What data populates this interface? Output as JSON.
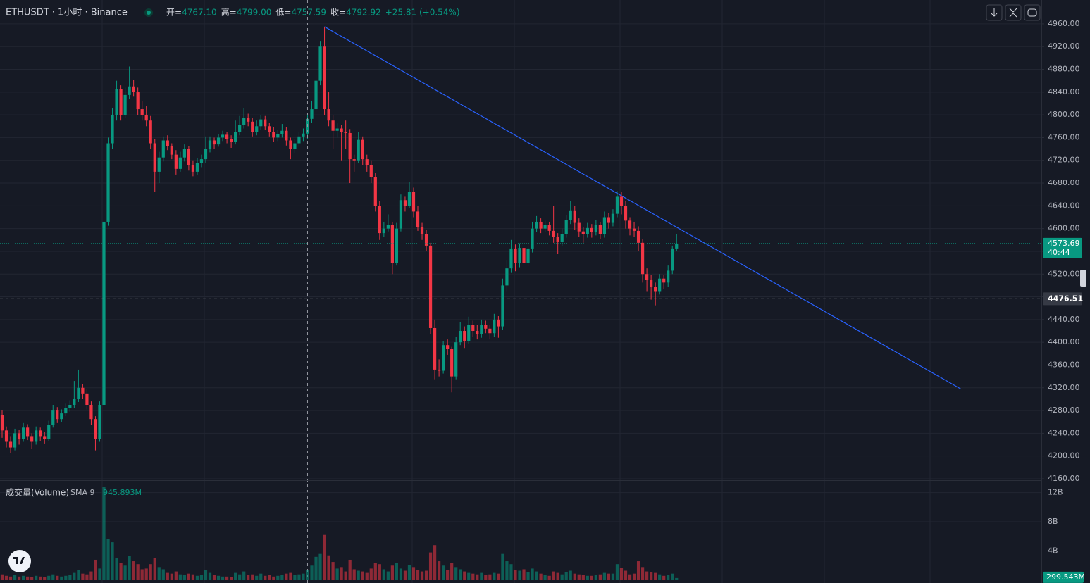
{
  "header": {
    "symbol": "ETHUSDT · 1小时 · Binance",
    "fields": [
      {
        "key": "开=",
        "value": "4767.10"
      },
      {
        "key": "高=",
        "value": "4799.00"
      },
      {
        "key": "低=",
        "value": "4757.59"
      },
      {
        "key": "收=",
        "value": "4792.92"
      }
    ],
    "change": "+25.81 (+0.54%)"
  },
  "chart_data": [
    {
      "type": "candlestick",
      "xlim": [
        -0.5,
        245
      ],
      "ylim": [
        4157.5,
        5002
      ],
      "yticks": [
        {
          "value": 4160,
          "label": "4160.00"
        },
        {
          "value": 4200,
          "label": "4200.00"
        },
        {
          "value": 4240,
          "label": "4240.00"
        },
        {
          "value": 4280,
          "label": "4280.00"
        },
        {
          "value": 4320,
          "label": "4320.00"
        },
        {
          "value": 4360,
          "label": "4360.00"
        },
        {
          "value": 4400,
          "label": "4400.00"
        },
        {
          "value": 4440,
          "label": "4440.00"
        },
        {
          "value": 4480,
          "label": "4480.00"
        },
        {
          "value": 4520,
          "label": "4520.00"
        },
        {
          "value": 4560,
          "label": "4560.00"
        },
        {
          "value": 4600,
          "label": "4600.00"
        },
        {
          "value": 4640,
          "label": "4640.00"
        },
        {
          "value": 4680,
          "label": "4680.00"
        },
        {
          "value": 4720,
          "label": "4720.00"
        },
        {
          "value": 4760,
          "label": "4760.00"
        },
        {
          "value": 4800,
          "label": "4800.00"
        },
        {
          "value": 4840,
          "label": "4840.00"
        },
        {
          "value": 4880,
          "label": "4880.00"
        },
        {
          "value": 4920,
          "label": "4920.00"
        },
        {
          "value": 4960,
          "label": "4960.00"
        }
      ],
      "grid": true,
      "colors": {
        "up": "#089981",
        "down": "#f23645"
      },
      "last_price": {
        "value": 4573.69,
        "countdown": "40:44"
      },
      "crosshair": {
        "x": 72,
        "y": 4476.51
      },
      "trendline": {
        "x": [
          76,
          226
        ],
        "y": [
          4955,
          4318
        ],
        "color": "#2962ff"
      },
      "ohlc": [
        [
          4272,
          4280,
          4232,
          4245
        ],
        [
          4245,
          4252,
          4215,
          4225
        ],
        [
          4225,
          4235,
          4205,
          4215
        ],
        [
          4215,
          4248,
          4210,
          4240
        ],
        [
          4240,
          4246,
          4220,
          4230
        ],
        [
          4230,
          4258,
          4225,
          4250
        ],
        [
          4250,
          4256,
          4228,
          4235
        ],
        [
          4235,
          4240,
          4212,
          4225
        ],
        [
          4225,
          4252,
          4220,
          4245
        ],
        [
          4245,
          4250,
          4226,
          4235
        ],
        [
          4235,
          4242,
          4222,
          4230
        ],
        [
          4230,
          4262,
          4226,
          4255
        ],
        [
          4255,
          4290,
          4250,
          4280
        ],
        [
          4280,
          4286,
          4258,
          4265
        ],
        [
          4265,
          4282,
          4260,
          4275
        ],
        [
          4275,
          4292,
          4270,
          4285
        ],
        [
          4285,
          4298,
          4278,
          4290
        ],
        [
          4290,
          4332,
          4284,
          4300
        ],
        [
          4300,
          4352,
          4295,
          4320
        ],
        [
          4320,
          4326,
          4300,
          4310
        ],
        [
          4310,
          4318,
          4282,
          4290
        ],
        [
          4290,
          4296,
          4255,
          4265
        ],
        [
          4265,
          4270,
          4210,
          4230
        ],
        [
          4230,
          4296,
          4225,
          4290
        ],
        [
          4290,
          4618,
          4285,
          4612
        ],
        [
          4612,
          4760,
          4605,
          4750
        ],
        [
          4750,
          4812,
          4740,
          4800
        ],
        [
          4800,
          4860,
          4790,
          4845
        ],
        [
          4845,
          4852,
          4790,
          4800
        ],
        [
          4800,
          4848,
          4795,
          4835
        ],
        [
          4835,
          4885,
          4828,
          4850
        ],
        [
          4850,
          4862,
          4832,
          4840
        ],
        [
          4840,
          4848,
          4800,
          4810
        ],
        [
          4810,
          4825,
          4790,
          4800
        ],
        [
          4800,
          4815,
          4780,
          4790
        ],
        [
          4790,
          4798,
          4740,
          4750
        ],
        [
          4750,
          4758,
          4665,
          4700
        ],
        [
          4700,
          4735,
          4680,
          4725
        ],
        [
          4725,
          4762,
          4718,
          4755
        ],
        [
          4755,
          4764,
          4738,
          4745
        ],
        [
          4745,
          4750,
          4722,
          4730
        ],
        [
          4730,
          4738,
          4695,
          4705
        ],
        [
          4705,
          4735,
          4700,
          4725
        ],
        [
          4725,
          4748,
          4718,
          4740
        ],
        [
          4740,
          4745,
          4702,
          4712
        ],
        [
          4712,
          4720,
          4692,
          4700
        ],
        [
          4700,
          4724,
          4695,
          4715
        ],
        [
          4715,
          4730,
          4708,
          4722
        ],
        [
          4722,
          4762,
          4716,
          4740
        ],
        [
          4740,
          4762,
          4734,
          4755
        ],
        [
          4755,
          4760,
          4740,
          4748
        ],
        [
          4748,
          4766,
          4744,
          4760
        ],
        [
          4760,
          4772,
          4754,
          4765
        ],
        [
          4765,
          4770,
          4750,
          4758
        ],
        [
          4758,
          4764,
          4742,
          4752
        ],
        [
          4752,
          4790,
          4748,
          4770
        ],
        [
          4770,
          4798,
          4764,
          4782
        ],
        [
          4782,
          4812,
          4776,
          4795
        ],
        [
          4795,
          4802,
          4780,
          4788
        ],
        [
          4788,
          4794,
          4762,
          4770
        ],
        [
          4770,
          4790,
          4764,
          4780
        ],
        [
          4780,
          4800,
          4774,
          4792
        ],
        [
          4792,
          4798,
          4774,
          4780
        ],
        [
          4780,
          4786,
          4762,
          4770
        ],
        [
          4770,
          4778,
          4752,
          4760
        ],
        [
          4760,
          4774,
          4754,
          4766
        ],
        [
          4766,
          4784,
          4760,
          4772
        ],
        [
          4772,
          4778,
          4746,
          4755
        ],
        [
          4755,
          4760,
          4722,
          4740
        ],
        [
          4740,
          4758,
          4732,
          4750
        ],
        [
          4750,
          4770,
          4744,
          4762
        ],
        [
          4762,
          4776,
          4754,
          4767.1
        ],
        [
          4767.1,
          4799,
          4757.59,
          4792.92
        ],
        [
          4792.92,
          4825,
          4786,
          4810
        ],
        [
          4810,
          4870,
          4805,
          4860
        ],
        [
          4860,
          4930,
          4852,
          4920
        ],
        [
          4920,
          4955,
          4800,
          4810
        ],
        [
          4810,
          4840,
          4780,
          4790
        ],
        [
          4790,
          4800,
          4740,
          4772
        ],
        [
          4772,
          4785,
          4760,
          4776
        ],
        [
          4776,
          4782,
          4720,
          4770
        ],
        [
          4770,
          4790,
          4740,
          4768
        ],
        [
          4768,
          4775,
          4680,
          4722
        ],
        [
          4722,
          4730,
          4700,
          4720
        ],
        [
          4720,
          4770,
          4715,
          4756
        ],
        [
          4756,
          4762,
          4712,
          4722
        ],
        [
          4722,
          4730,
          4700,
          4712
        ],
        [
          4712,
          4720,
          4680,
          4690
        ],
        [
          4690,
          4698,
          4630,
          4640
        ],
        [
          4640,
          4648,
          4580,
          4592
        ],
        [
          4592,
          4612,
          4585,
          4600
        ],
        [
          4600,
          4625,
          4595,
          4606
        ],
        [
          4606,
          4612,
          4520,
          4540
        ],
        [
          4540,
          4610,
          4535,
          4600
        ],
        [
          4600,
          4660,
          4595,
          4650
        ],
        [
          4650,
          4656,
          4630,
          4640
        ],
        [
          4640,
          4682,
          4636,
          4665
        ],
        [
          4665,
          4672,
          4620,
          4630
        ],
        [
          4630,
          4640,
          4596,
          4602
        ],
        [
          4602,
          4610,
          4580,
          4590
        ],
        [
          4590,
          4598,
          4560,
          4570
        ],
        [
          4570,
          4575,
          4415,
          4425
        ],
        [
          4425,
          4440,
          4335,
          4352
        ],
        [
          4352,
          4370,
          4340,
          4350
        ],
        [
          4350,
          4402,
          4345,
          4395
        ],
        [
          4395,
          4405,
          4378,
          4388
        ],
        [
          4388,
          4392,
          4312,
          4340
        ],
        [
          4340,
          4410,
          4335,
          4400
        ],
        [
          4400,
          4436,
          4395,
          4420
        ],
        [
          4420,
          4428,
          4390,
          4402
        ],
        [
          4402,
          4445,
          4398,
          4430
        ],
        [
          4430,
          4438,
          4410,
          4420
        ],
        [
          4420,
          4430,
          4405,
          4415
        ],
        [
          4415,
          4440,
          4408,
          4430
        ],
        [
          4430,
          4438,
          4416,
          4424
        ],
        [
          4424,
          4430,
          4405,
          4416
        ],
        [
          4416,
          4450,
          4410,
          4440
        ],
        [
          4440,
          4446,
          4408,
          4428
        ],
        [
          4428,
          4512,
          4422,
          4500
        ],
        [
          4500,
          4545,
          4490,
          4530
        ],
        [
          4530,
          4580,
          4522,
          4565
        ],
        [
          4565,
          4572,
          4525,
          4540
        ],
        [
          4540,
          4574,
          4532,
          4566
        ],
        [
          4566,
          4572,
          4530,
          4540
        ],
        [
          4540,
          4572,
          4534,
          4565
        ],
        [
          4565,
          4612,
          4558,
          4600
        ],
        [
          4600,
          4622,
          4594,
          4612
        ],
        [
          4612,
          4618,
          4592,
          4600
        ],
        [
          4600,
          4614,
          4594,
          4606
        ],
        [
          4606,
          4612,
          4588,
          4596
        ],
        [
          4596,
          4640,
          4575,
          4585
        ],
        [
          4585,
          4592,
          4555,
          4576
        ],
        [
          4576,
          4600,
          4570,
          4590
        ],
        [
          4590,
          4624,
          4584,
          4615
        ],
        [
          4615,
          4648,
          4608,
          4632
        ],
        [
          4632,
          4640,
          4598,
          4610
        ],
        [
          4610,
          4618,
          4585,
          4595
        ],
        [
          4595,
          4602,
          4575,
          4590
        ],
        [
          4590,
          4610,
          4584,
          4601
        ],
        [
          4601,
          4608,
          4584,
          4594
        ],
        [
          4594,
          4615,
          4588,
          4606
        ],
        [
          4606,
          4612,
          4582,
          4590
        ],
        [
          4590,
          4630,
          4584,
          4620
        ],
        [
          4620,
          4628,
          4600,
          4610
        ],
        [
          4610,
          4634,
          4604,
          4626
        ],
        [
          4626,
          4666,
          4620,
          4656
        ],
        [
          4656,
          4664,
          4625,
          4640
        ],
        [
          4640,
          4648,
          4600,
          4614
        ],
        [
          4614,
          4620,
          4588,
          4600
        ],
        [
          4600,
          4612,
          4585,
          4596
        ],
        [
          4596,
          4604,
          4560,
          4575
        ],
        [
          4575,
          4582,
          4505,
          4520
        ],
        [
          4520,
          4530,
          4490,
          4510
        ],
        [
          4510,
          4518,
          4475,
          4498
        ],
        [
          4498,
          4505,
          4465,
          4490
        ],
        [
          4490,
          4520,
          4484,
          4512
        ],
        [
          4512,
          4518,
          4494,
          4505
        ],
        [
          4505,
          4535,
          4498,
          4526
        ],
        [
          4526,
          4570,
          4520,
          4565
        ],
        [
          4565,
          4590,
          4560,
          4573.69
        ]
      ]
    },
    {
      "type": "bar",
      "title": "成交量(Volume)",
      "indicator": "SMA 9",
      "indicator_value_label": "945.893M",
      "ylim": [
        0,
        13.6
      ],
      "yticks": [
        {
          "value": 4,
          "label": "4B"
        },
        {
          "value": 8,
          "label": "8B"
        },
        {
          "value": 12,
          "label": "12B"
        }
      ],
      "last_value_label": "299.543M",
      "values": [
        0.8,
        0.6,
        0.5,
        0.7,
        0.5,
        0.6,
        0.5,
        0.4,
        0.6,
        0.5,
        0.4,
        0.6,
        0.8,
        0.6,
        0.5,
        0.6,
        0.7,
        1.0,
        1.4,
        0.9,
        0.8,
        1.2,
        2.8,
        1.6,
        12.8,
        5.6,
        5.2,
        3.0,
        2.4,
        2.0,
        3.3,
        2.6,
        2.2,
        1.5,
        1.6,
        2.2,
        3.0,
        1.8,
        1.5,
        1.0,
        0.9,
        1.2,
        0.8,
        0.7,
        0.9,
        0.8,
        0.6,
        0.7,
        1.4,
        1.0,
        0.7,
        0.6,
        0.5,
        0.5,
        0.4,
        1.0,
        0.8,
        1.2,
        0.7,
        0.8,
        0.6,
        0.9,
        0.6,
        0.7,
        0.5,
        0.6,
        0.7,
        0.9,
        1.0,
        0.7,
        0.8,
        0.9,
        1.4,
        2.0,
        3.2,
        3.6,
        6.2,
        3.4,
        2.5,
        1.6,
        1.8,
        1.2,
        2.8,
        1.5,
        1.3,
        1.2,
        1.0,
        1.6,
        2.4,
        2.2,
        1.5,
        1.2,
        2.0,
        2.4,
        1.6,
        1.3,
        2.1,
        1.8,
        1.4,
        1.2,
        1.3,
        3.8,
        4.8,
        2.6,
        2.0,
        1.4,
        2.4,
        1.8,
        1.5,
        1.2,
        1.0,
        0.9,
        0.8,
        1.0,
        0.7,
        0.8,
        1.0,
        0.9,
        3.6,
        2.6,
        2.2,
        1.4,
        1.3,
        1.5,
        1.1,
        1.6,
        1.2,
        0.9,
        0.7,
        0.6,
        1.2,
        1.0,
        0.8,
        1.1,
        1.3,
        0.9,
        0.8,
        0.7,
        0.6,
        0.6,
        0.7,
        0.8,
        1.0,
        0.9,
        0.9,
        2.2,
        1.7,
        1.3,
        0.8,
        0.9,
        2.6,
        1.8,
        1.2,
        1.1,
        1.0,
        0.8,
        0.6,
        0.7,
        0.9,
        0.299543
      ]
    }
  ]
}
